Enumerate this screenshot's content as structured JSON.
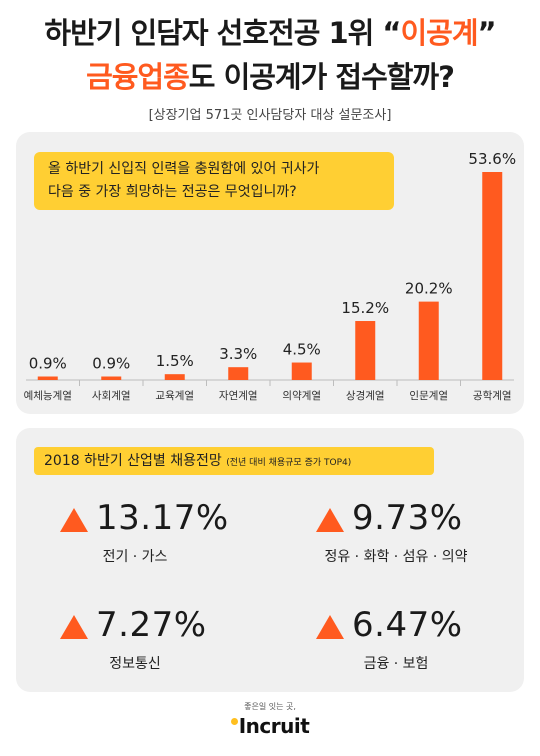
{
  "header": {
    "title_line1_a": "하반기 인담자 선호전공 1위 “",
    "title_line1_b": "이공계",
    "title_line1_c": "”",
    "title_line2_a": "금융업종",
    "title_line2_b": "도 이공계가 접수할까?",
    "subtitle": "[상장기업 571곳 인사담당자 대상 설문조사]"
  },
  "question": {
    "line1": "올 하반기 신입직 인력을 충원함에 있어 귀사가",
    "line2": "다음 중 가장 희망하는 전공은 무엇입니까?"
  },
  "chart_data": {
    "type": "bar",
    "title": "",
    "categories": [
      "예체능계열",
      "사회계열",
      "교육계열",
      "자연계열",
      "의약계열",
      "상경계열",
      "인문계열",
      "공학계열"
    ],
    "values": [
      0.9,
      0.9,
      1.5,
      3.3,
      4.5,
      15.2,
      20.2,
      53.6
    ],
    "value_labels": [
      "0.9%",
      "0.9%",
      "1.5%",
      "3.3%",
      "4.5%",
      "15.2%",
      "20.2%",
      "53.6%"
    ],
    "ylim": [
      0,
      53.6
    ],
    "grid": false,
    "color": "#ff5a1f"
  },
  "outlook": {
    "title": "2018 하반기 산업별 채용전망",
    "note": "(전년 대비 채용규모 증가 TOP4)",
    "items": [
      {
        "value": "13.17%",
        "label": "전기 · 가스"
      },
      {
        "value": "9.73%",
        "label": "정유 · 화학 · 섬유 · 의약"
      },
      {
        "value": "7.27%",
        "label": "정보통신"
      },
      {
        "value": "6.47%",
        "label": "금융 · 보험"
      }
    ]
  },
  "footer": {
    "tagline": "좋은일 잇는 곳,",
    "brand": "Incruit"
  },
  "colors": {
    "accent": "#ff5a1f",
    "highlight": "#ffcf33",
    "panel": "#f0f0f0"
  }
}
